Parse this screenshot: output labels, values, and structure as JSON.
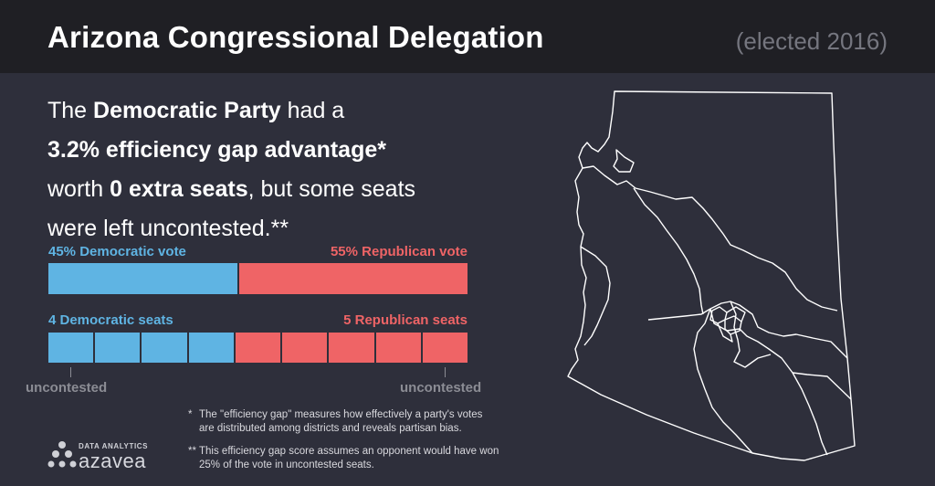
{
  "header": {
    "title": "Arizona Congressional Delegation",
    "subtitle": "(elected 2016)"
  },
  "summary": {
    "l1_a": "The ",
    "l1_b": "Democratic Party",
    "l1_c": " had a",
    "l2": "3.2% efficiency gap advantage*",
    "l3_a": "worth ",
    "l3_b": "0 extra seats",
    "l3_c": ", but some seats",
    "l4": "were left uncontested.**"
  },
  "chart_data": [
    {
      "type": "bar",
      "orientation": "horizontal-stacked",
      "categories": [
        "Democratic vote",
        "Republican vote"
      ],
      "labels": [
        "45% Democratic vote",
        "55% Republican vote"
      ],
      "values": [
        45,
        55
      ],
      "colors": [
        "#5fb4e3",
        "#ef6466"
      ]
    },
    {
      "type": "bar",
      "orientation": "horizontal-units",
      "categories": [
        "Democratic seats",
        "Republican seats"
      ],
      "labels": [
        "4 Democratic seats",
        "5 Republican seats"
      ],
      "values": [
        4,
        5
      ],
      "colors": [
        "#5fb4e3",
        "#ef6466"
      ],
      "uncontested_label": "uncontested",
      "uncontested_seats": [
        1,
        9
      ]
    }
  ],
  "notes": [
    {
      "marker": "*",
      "lines": [
        "The \"efficiency gap\" measures how effectively a party's votes",
        "are distributed among districts and reveals partisan bias."
      ]
    },
    {
      "marker": "**",
      "lines": [
        "This efficiency gap score assumes an opponent would have won",
        "25% of the vote in uncontested seats."
      ]
    }
  ],
  "logo": {
    "small": "DATA ANALYTICS",
    "big": "azavea"
  }
}
